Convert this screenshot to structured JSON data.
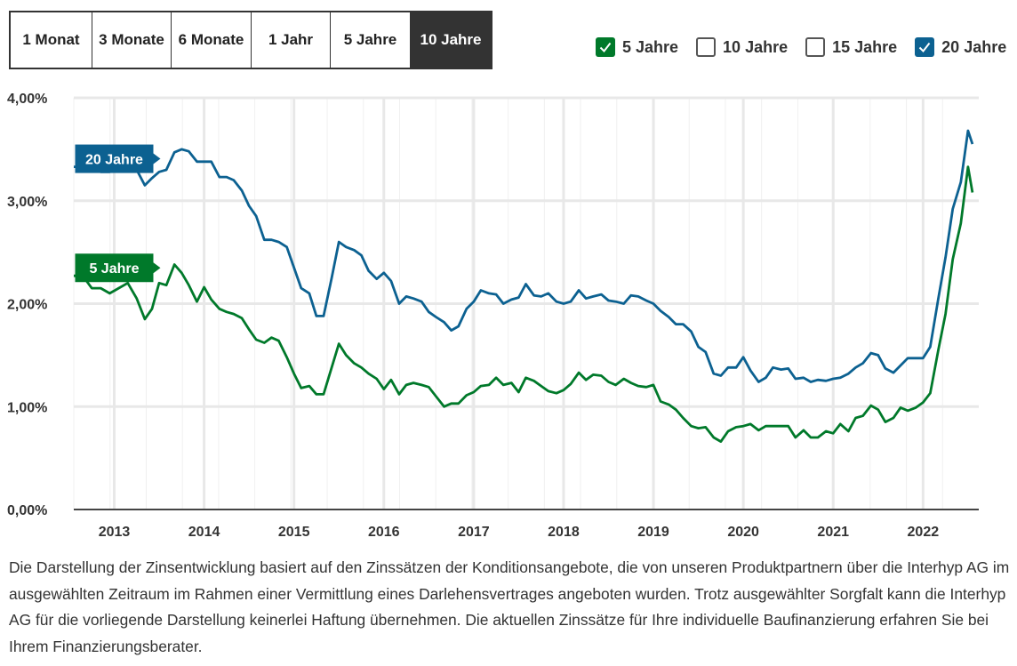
{
  "tabs": [
    {
      "label": "1 Monat",
      "active": false
    },
    {
      "label": "3 Monate",
      "active": false
    },
    {
      "label": "6 Monate",
      "active": false
    },
    {
      "label": "1 Jahr",
      "active": false
    },
    {
      "label": "5 Jahre",
      "active": false
    },
    {
      "label": "10 Jahre",
      "active": true
    }
  ],
  "legend": [
    {
      "label": "5 Jahre",
      "checked": true,
      "color": "#00792a",
      "icon": "check-icon"
    },
    {
      "label": "10 Jahre",
      "checked": false,
      "color": "#555555",
      "icon": "checkbox-empty-icon"
    },
    {
      "label": "15 Jahre",
      "checked": false,
      "color": "#555555",
      "icon": "checkbox-empty-icon"
    },
    {
      "label": "20 Jahre",
      "checked": true,
      "color": "#0c6191",
      "icon": "check-icon"
    }
  ],
  "chart_data": {
    "type": "line",
    "yticks": [
      "0,00%",
      "1,00%",
      "2,00%",
      "3,00%",
      "4,00%"
    ],
    "xticks": [
      "2013",
      "2014",
      "2015",
      "2016",
      "2017",
      "2018",
      "2019",
      "2020",
      "2021",
      "2022"
    ],
    "ylim": [
      0,
      4
    ],
    "xlim": [
      2012.55,
      2022.62
    ],
    "grid": true,
    "series": [
      {
        "name": "20 Jahre",
        "color": "#0c6191",
        "label_x": 2013.0,
        "points": [
          [
            2012.55,
            3.33
          ],
          [
            2012.65,
            3.33
          ],
          [
            2012.75,
            3.3
          ],
          [
            2012.85,
            3.28
          ],
          [
            2012.95,
            3.28
          ],
          [
            2013.05,
            3.3
          ],
          [
            2013.15,
            3.32
          ],
          [
            2013.25,
            3.3
          ],
          [
            2013.34,
            3.15
          ],
          [
            2013.42,
            3.22
          ],
          [
            2013.5,
            3.28
          ],
          [
            2013.58,
            3.3
          ],
          [
            2013.67,
            3.47
          ],
          [
            2013.75,
            3.5
          ],
          [
            2013.83,
            3.48
          ],
          [
            2013.92,
            3.38
          ],
          [
            2014.0,
            3.38
          ],
          [
            2014.08,
            3.38
          ],
          [
            2014.17,
            3.23
          ],
          [
            2014.25,
            3.23
          ],
          [
            2014.33,
            3.2
          ],
          [
            2014.42,
            3.1
          ],
          [
            2014.5,
            2.95
          ],
          [
            2014.58,
            2.85
          ],
          [
            2014.67,
            2.62
          ],
          [
            2014.75,
            2.62
          ],
          [
            2014.83,
            2.6
          ],
          [
            2014.92,
            2.55
          ],
          [
            2015.0,
            2.35
          ],
          [
            2015.08,
            2.15
          ],
          [
            2015.17,
            2.1
          ],
          [
            2015.25,
            1.88
          ],
          [
            2015.33,
            1.88
          ],
          [
            2015.42,
            2.25
          ],
          [
            2015.5,
            2.6
          ],
          [
            2015.58,
            2.55
          ],
          [
            2015.67,
            2.52
          ],
          [
            2015.75,
            2.47
          ],
          [
            2015.83,
            2.32
          ],
          [
            2015.92,
            2.24
          ],
          [
            2016.0,
            2.3
          ],
          [
            2016.08,
            2.22
          ],
          [
            2016.17,
            2.0
          ],
          [
            2016.25,
            2.07
          ],
          [
            2016.33,
            2.05
          ],
          [
            2016.42,
            2.02
          ],
          [
            2016.5,
            1.92
          ],
          [
            2016.58,
            1.87
          ],
          [
            2016.67,
            1.82
          ],
          [
            2016.75,
            1.74
          ],
          [
            2016.83,
            1.78
          ],
          [
            2016.92,
            1.95
          ],
          [
            2017.0,
            2.02
          ],
          [
            2017.08,
            2.13
          ],
          [
            2017.17,
            2.1
          ],
          [
            2017.25,
            2.09
          ],
          [
            2017.33,
            2.0
          ],
          [
            2017.42,
            2.04
          ],
          [
            2017.5,
            2.06
          ],
          [
            2017.58,
            2.19
          ],
          [
            2017.67,
            2.08
          ],
          [
            2017.75,
            2.07
          ],
          [
            2017.83,
            2.1
          ],
          [
            2017.92,
            2.02
          ],
          [
            2018.0,
            2.0
          ],
          [
            2018.08,
            2.02
          ],
          [
            2018.17,
            2.13
          ],
          [
            2018.25,
            2.05
          ],
          [
            2018.33,
            2.07
          ],
          [
            2018.42,
            2.09
          ],
          [
            2018.5,
            2.03
          ],
          [
            2018.58,
            2.02
          ],
          [
            2018.67,
            2.0
          ],
          [
            2018.75,
            2.08
          ],
          [
            2018.83,
            2.07
          ],
          [
            2018.92,
            2.03
          ],
          [
            2019.0,
            2.0
          ],
          [
            2019.08,
            1.93
          ],
          [
            2019.17,
            1.87
          ],
          [
            2019.25,
            1.8
          ],
          [
            2019.33,
            1.8
          ],
          [
            2019.42,
            1.73
          ],
          [
            2019.5,
            1.58
          ],
          [
            2019.58,
            1.53
          ],
          [
            2019.67,
            1.32
          ],
          [
            2019.75,
            1.3
          ],
          [
            2019.83,
            1.38
          ],
          [
            2019.92,
            1.38
          ],
          [
            2020.0,
            1.48
          ],
          [
            2020.08,
            1.35
          ],
          [
            2020.17,
            1.24
          ],
          [
            2020.25,
            1.28
          ],
          [
            2020.33,
            1.38
          ],
          [
            2020.42,
            1.36
          ],
          [
            2020.5,
            1.37
          ],
          [
            2020.58,
            1.27
          ],
          [
            2020.67,
            1.28
          ],
          [
            2020.75,
            1.24
          ],
          [
            2020.83,
            1.26
          ],
          [
            2020.92,
            1.25
          ],
          [
            2021.0,
            1.27
          ],
          [
            2021.08,
            1.28
          ],
          [
            2021.17,
            1.32
          ],
          [
            2021.25,
            1.38
          ],
          [
            2021.33,
            1.42
          ],
          [
            2021.42,
            1.52
          ],
          [
            2021.5,
            1.5
          ],
          [
            2021.58,
            1.37
          ],
          [
            2021.67,
            1.33
          ],
          [
            2021.75,
            1.4
          ],
          [
            2021.83,
            1.47
          ],
          [
            2021.92,
            1.47
          ],
          [
            2022.0,
            1.47
          ],
          [
            2022.08,
            1.58
          ],
          [
            2022.17,
            2.05
          ],
          [
            2022.25,
            2.45
          ],
          [
            2022.33,
            2.92
          ],
          [
            2022.42,
            3.18
          ],
          [
            2022.5,
            3.68
          ],
          [
            2022.55,
            3.55
          ]
        ]
      },
      {
        "name": "5 Jahre",
        "color": "#00792a",
        "label_x": 2013.0,
        "points": [
          [
            2012.55,
            2.27
          ],
          [
            2012.65,
            2.27
          ],
          [
            2012.75,
            2.15
          ],
          [
            2012.85,
            2.15
          ],
          [
            2012.95,
            2.1
          ],
          [
            2013.05,
            2.15
          ],
          [
            2013.15,
            2.2
          ],
          [
            2013.25,
            2.05
          ],
          [
            2013.34,
            1.85
          ],
          [
            2013.42,
            1.95
          ],
          [
            2013.5,
            2.2
          ],
          [
            2013.58,
            2.18
          ],
          [
            2013.67,
            2.38
          ],
          [
            2013.75,
            2.3
          ],
          [
            2013.83,
            2.18
          ],
          [
            2013.92,
            2.02
          ],
          [
            2014.0,
            2.16
          ],
          [
            2014.08,
            2.04
          ],
          [
            2014.17,
            1.95
          ],
          [
            2014.25,
            1.92
          ],
          [
            2014.33,
            1.9
          ],
          [
            2014.42,
            1.86
          ],
          [
            2014.5,
            1.75
          ],
          [
            2014.58,
            1.65
          ],
          [
            2014.67,
            1.62
          ],
          [
            2014.75,
            1.67
          ],
          [
            2014.83,
            1.64
          ],
          [
            2014.92,
            1.48
          ],
          [
            2015.0,
            1.32
          ],
          [
            2015.08,
            1.18
          ],
          [
            2015.17,
            1.2
          ],
          [
            2015.25,
            1.12
          ],
          [
            2015.33,
            1.12
          ],
          [
            2015.42,
            1.38
          ],
          [
            2015.5,
            1.61
          ],
          [
            2015.58,
            1.5
          ],
          [
            2015.67,
            1.42
          ],
          [
            2015.75,
            1.38
          ],
          [
            2015.83,
            1.32
          ],
          [
            2015.92,
            1.27
          ],
          [
            2016.0,
            1.17
          ],
          [
            2016.08,
            1.26
          ],
          [
            2016.17,
            1.12
          ],
          [
            2016.25,
            1.21
          ],
          [
            2016.33,
            1.23
          ],
          [
            2016.42,
            1.21
          ],
          [
            2016.5,
            1.19
          ],
          [
            2016.58,
            1.1
          ],
          [
            2016.67,
            1.0
          ],
          [
            2016.75,
            1.03
          ],
          [
            2016.83,
            1.03
          ],
          [
            2016.92,
            1.11
          ],
          [
            2017.0,
            1.14
          ],
          [
            2017.08,
            1.2
          ],
          [
            2017.17,
            1.21
          ],
          [
            2017.25,
            1.28
          ],
          [
            2017.33,
            1.21
          ],
          [
            2017.42,
            1.23
          ],
          [
            2017.5,
            1.14
          ],
          [
            2017.58,
            1.28
          ],
          [
            2017.67,
            1.25
          ],
          [
            2017.75,
            1.2
          ],
          [
            2017.83,
            1.15
          ],
          [
            2017.92,
            1.13
          ],
          [
            2018.0,
            1.16
          ],
          [
            2018.08,
            1.22
          ],
          [
            2018.17,
            1.33
          ],
          [
            2018.25,
            1.26
          ],
          [
            2018.33,
            1.31
          ],
          [
            2018.42,
            1.3
          ],
          [
            2018.5,
            1.24
          ],
          [
            2018.58,
            1.21
          ],
          [
            2018.67,
            1.27
          ],
          [
            2018.75,
            1.23
          ],
          [
            2018.83,
            1.2
          ],
          [
            2018.92,
            1.19
          ],
          [
            2019.0,
            1.21
          ],
          [
            2019.08,
            1.05
          ],
          [
            2019.17,
            1.02
          ],
          [
            2019.25,
            0.97
          ],
          [
            2019.33,
            0.89
          ],
          [
            2019.42,
            0.81
          ],
          [
            2019.5,
            0.79
          ],
          [
            2019.58,
            0.8
          ],
          [
            2019.67,
            0.7
          ],
          [
            2019.75,
            0.66
          ],
          [
            2019.83,
            0.76
          ],
          [
            2019.92,
            0.8
          ],
          [
            2020.0,
            0.81
          ],
          [
            2020.08,
            0.83
          ],
          [
            2020.17,
            0.77
          ],
          [
            2020.25,
            0.81
          ],
          [
            2020.33,
            0.81
          ],
          [
            2020.42,
            0.81
          ],
          [
            2020.5,
            0.81
          ],
          [
            2020.58,
            0.7
          ],
          [
            2020.67,
            0.77
          ],
          [
            2020.75,
            0.7
          ],
          [
            2020.83,
            0.7
          ],
          [
            2020.92,
            0.76
          ],
          [
            2021.0,
            0.74
          ],
          [
            2021.08,
            0.83
          ],
          [
            2021.17,
            0.76
          ],
          [
            2021.25,
            0.89
          ],
          [
            2021.33,
            0.91
          ],
          [
            2021.42,
            1.01
          ],
          [
            2021.5,
            0.97
          ],
          [
            2021.58,
            0.85
          ],
          [
            2021.67,
            0.89
          ],
          [
            2021.75,
            0.99
          ],
          [
            2021.83,
            0.96
          ],
          [
            2021.92,
            0.99
          ],
          [
            2022.0,
            1.04
          ],
          [
            2022.08,
            1.13
          ],
          [
            2022.17,
            1.55
          ],
          [
            2022.25,
            1.9
          ],
          [
            2022.33,
            2.43
          ],
          [
            2022.42,
            2.78
          ],
          [
            2022.5,
            3.33
          ],
          [
            2022.55,
            3.08
          ]
        ]
      }
    ]
  },
  "note": "Die Darstellung der Zinsentwicklung basiert auf den Zinssätzen der Konditionsangebote, die von unseren Produktpartnern über die Interhyp AG im ausgewählten Zeitraum im Rahmen einer Vermittlung eines Darlehensvertrages angeboten wurden. Trotz ausgewählter Sorgfalt kann die Interhyp AG für die vorliegende Darstellung keinerlei Haftung übernehmen. Die aktuellen Zinssätze für Ihre individuelle Baufinanzierung erfahren Sie bei Ihrem Finanzierungsberater."
}
